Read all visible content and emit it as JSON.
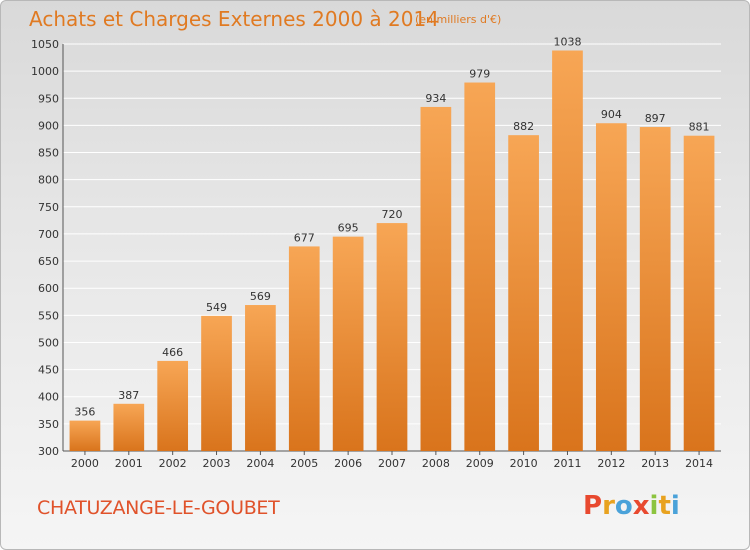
{
  "title": "Achats et Charges Externes 2000 à 2014",
  "unit": "(en milliers d'€)",
  "location": "CHATUZANGE-LE-GOUBET",
  "brand": {
    "letters": [
      "P",
      "r",
      "o",
      "x",
      "i",
      "t",
      "i"
    ],
    "colors": [
      "#e8492f",
      "#e8a21f",
      "#4aa2d9",
      "#e8492f",
      "#8cc43f",
      "#e8a21f",
      "#4aa2d9"
    ]
  },
  "colors": {
    "bar_light": "#f7a655",
    "bar_dark": "#d9741c",
    "text": "#e07a22",
    "axis": "#555555"
  },
  "chart_data": {
    "type": "bar",
    "categories": [
      "2000",
      "2001",
      "2002",
      "2003",
      "2004",
      "2005",
      "2006",
      "2007",
      "2008",
      "2009",
      "2010",
      "2011",
      "2012",
      "2013",
      "2014"
    ],
    "values": [
      356,
      387,
      466,
      549,
      569,
      677,
      695,
      720,
      934,
      979,
      882,
      1038,
      904,
      897,
      881
    ],
    "ylim": [
      300,
      1050
    ],
    "yticks": [
      300,
      350,
      400,
      450,
      500,
      550,
      600,
      650,
      700,
      750,
      800,
      850,
      900,
      950,
      1000,
      1050
    ],
    "grid": true
  }
}
